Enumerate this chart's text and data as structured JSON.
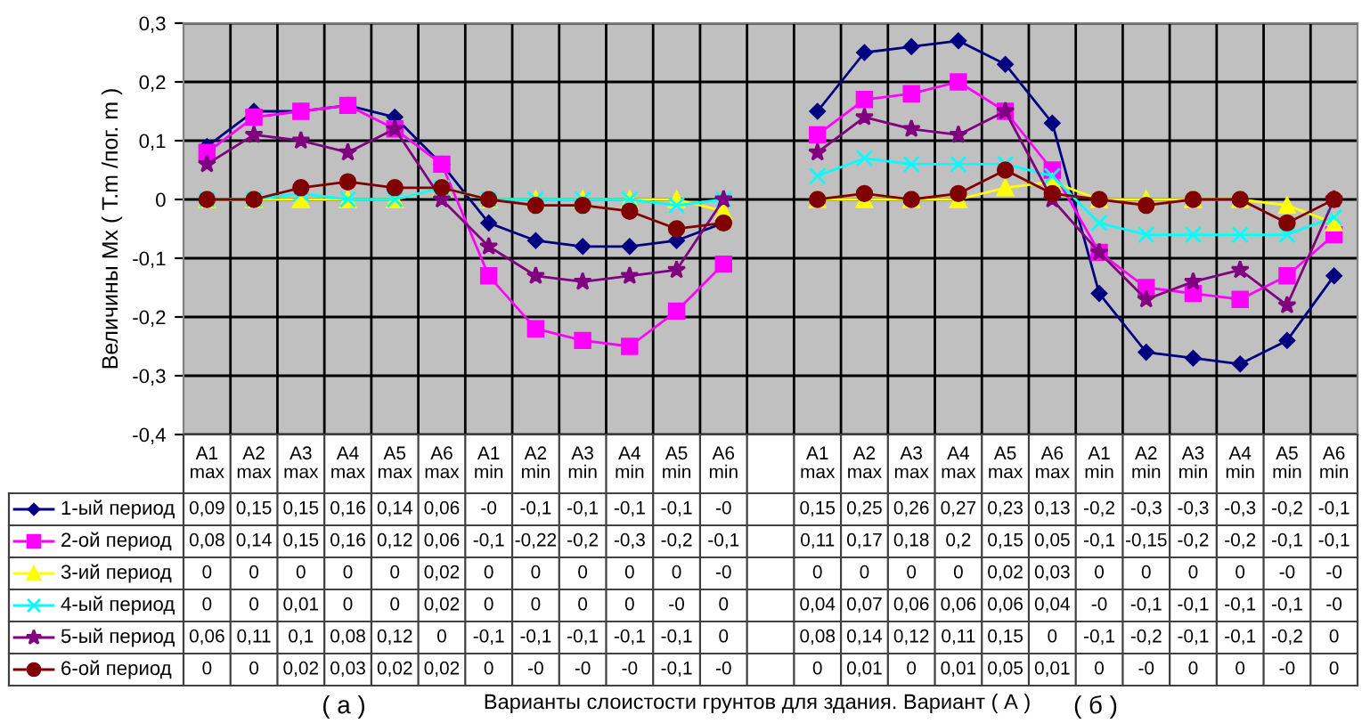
{
  "chart_data": {
    "type": "line",
    "ylabel": "Величины Mx ( T.m /пог. m )",
    "annotations": [
      "( а )",
      "Варианты слоистости грунтов для здания. Вариант ( А )",
      "( б )"
    ],
    "categories": [
      "A1 max",
      "A2 max",
      "A3 max",
      "A4 max",
      "A5 max",
      "A6 max",
      "A1 min",
      "A2 min",
      "A3 min",
      "A4 min",
      "A5 min",
      "A6 min",
      null,
      "A1 max",
      "A2 max",
      "A3 max",
      "A4 max",
      "A5 max",
      "A6 max",
      "A1 min",
      "A2 min",
      "A3 min",
      "A4 min",
      "A5 min",
      "A6 min"
    ],
    "ylim": [
      -0.4,
      0.3
    ],
    "yticks": [
      {
        "value": -0.4,
        "label": "-0,4"
      },
      {
        "value": -0.3,
        "label": "-0,3"
      },
      {
        "value": -0.2,
        "label": "-0,2"
      },
      {
        "value": -0.1,
        "label": "-0,1"
      },
      0,
      {
        "value": 0.1,
        "label": "0,1"
      },
      {
        "value": 0.2,
        "label": "0,2"
      },
      {
        "value": 0.3,
        "label": "0,3"
      }
    ],
    "grid": true,
    "legend": "bottom",
    "series": [
      {
        "name": "1-ый период",
        "color": "#000080",
        "marker": "diamond",
        "values": [
          0.09,
          0.15,
          0.15,
          0.16,
          0.14,
          0.06,
          -0.04,
          -0.07,
          -0.08,
          -0.08,
          -0.07,
          -0.04,
          null,
          0.15,
          0.25,
          0.26,
          0.27,
          0.23,
          0.13,
          -0.16,
          -0.26,
          -0.27,
          -0.28,
          -0.24,
          -0.13
        ],
        "value_labels": [
          "0,09",
          "0,15",
          "0,15",
          "0,16",
          "0,14",
          "0,06",
          "-0",
          "-0,1",
          "-0,1",
          "-0,1",
          "-0,1",
          "-0",
          null,
          "0,15",
          "0,25",
          "0,26",
          "0,27",
          "0,23",
          "0,13",
          "-0,2",
          "-0,3",
          "-0,3",
          "-0,3",
          "-0,2",
          "-0,1"
        ]
      },
      {
        "name": "2-ой период",
        "color": "#ff00ff",
        "marker": "square",
        "values": [
          0.08,
          0.14,
          0.15,
          0.16,
          0.12,
          0.06,
          -0.13,
          -0.22,
          -0.24,
          -0.25,
          -0.19,
          -0.11,
          null,
          0.11,
          0.17,
          0.18,
          0.2,
          0.15,
          0.05,
          -0.09,
          -0.15,
          -0.16,
          -0.17,
          -0.13,
          -0.06
        ],
        "value_labels": [
          "0,08",
          "0,14",
          "0,15",
          "0,16",
          "0,12",
          "0,06",
          "-0,1",
          "-0,22",
          "-0,2",
          "-0,3",
          "-0,2",
          "-0,1",
          null,
          "0,11",
          "0,17",
          "0,18",
          "0,2",
          "0,15",
          "0,05",
          "-0,1",
          "-0,15",
          "-0,2",
          "-0,2",
          "-0,1",
          "-0,1"
        ]
      },
      {
        "name": "3-ий период",
        "color": "#ffff00",
        "marker": "triangle",
        "values": [
          0,
          0,
          0,
          0,
          0,
          0.02,
          0,
          0,
          0,
          0,
          0,
          -0.02,
          null,
          0,
          0,
          0,
          0,
          0.02,
          0.03,
          0,
          0,
          0,
          0,
          -0.01,
          -0.04
        ],
        "value_labels": [
          "0",
          "0",
          "0",
          "0",
          "0",
          "0,02",
          "0",
          "0",
          "0",
          "0",
          "0",
          "-0",
          null,
          "0",
          "0",
          "0",
          "0",
          "0,02",
          "0,03",
          "0",
          "0",
          "0",
          "0",
          "-0",
          "-0"
        ]
      },
      {
        "name": "4-ый период",
        "color": "#00ffff",
        "marker": "cross",
        "values": [
          0,
          0,
          0.01,
          0,
          0,
          0.02,
          0,
          0,
          0,
          0,
          -0.01,
          0,
          null,
          0.04,
          0.07,
          0.06,
          0.06,
          0.06,
          0.04,
          -0.04,
          -0.06,
          -0.06,
          -0.06,
          -0.06,
          -0.03
        ],
        "value_labels": [
          "0",
          "0",
          "0,01",
          "0",
          "0",
          "0,02",
          "0",
          "0",
          "0",
          "0",
          "-0",
          "0",
          null,
          "0,04",
          "0,07",
          "0,06",
          "0,06",
          "0,06",
          "0,04",
          "-0",
          "-0,1",
          "-0,1",
          "-0,1",
          "-0,1",
          "-0"
        ]
      },
      {
        "name": "5-ый период",
        "color": "#800080",
        "marker": "star",
        "values": [
          0.06,
          0.11,
          0.1,
          0.08,
          0.12,
          0,
          -0.08,
          -0.13,
          -0.14,
          -0.13,
          -0.12,
          0,
          null,
          0.08,
          0.14,
          0.12,
          0.11,
          0.15,
          0,
          -0.09,
          -0.17,
          -0.14,
          -0.12,
          -0.18,
          0
        ],
        "value_labels": [
          "0,06",
          "0,11",
          "0,1",
          "0,08",
          "0,12",
          "0",
          "-0,1",
          "-0,1",
          "-0,1",
          "-0,1",
          "-0,1",
          "0",
          null,
          "0,08",
          "0,14",
          "0,12",
          "0,11",
          "0,15",
          "0",
          "-0,1",
          "-0,2",
          "-0,1",
          "-0,1",
          "-0,2",
          "0"
        ]
      },
      {
        "name": "6-ой период",
        "color": "#800000",
        "marker": "circle",
        "values": [
          0,
          0,
          0.02,
          0.03,
          0.02,
          0.02,
          0,
          -0.01,
          -0.01,
          -0.02,
          -0.05,
          -0.04,
          null,
          0,
          0.01,
          0,
          0.01,
          0.05,
          0.01,
          0,
          -0.01,
          0,
          0,
          -0.04,
          0
        ],
        "value_labels": [
          "0",
          "0",
          "0,02",
          "0,03",
          "0,02",
          "0,02",
          "0",
          "-0",
          "-0",
          "-0",
          "-0,1",
          "-0",
          null,
          "0",
          "0,01",
          "0",
          "0,01",
          "0,05",
          "0,01",
          "0",
          "-0",
          "0",
          "0",
          "-0",
          "0"
        ]
      }
    ]
  }
}
